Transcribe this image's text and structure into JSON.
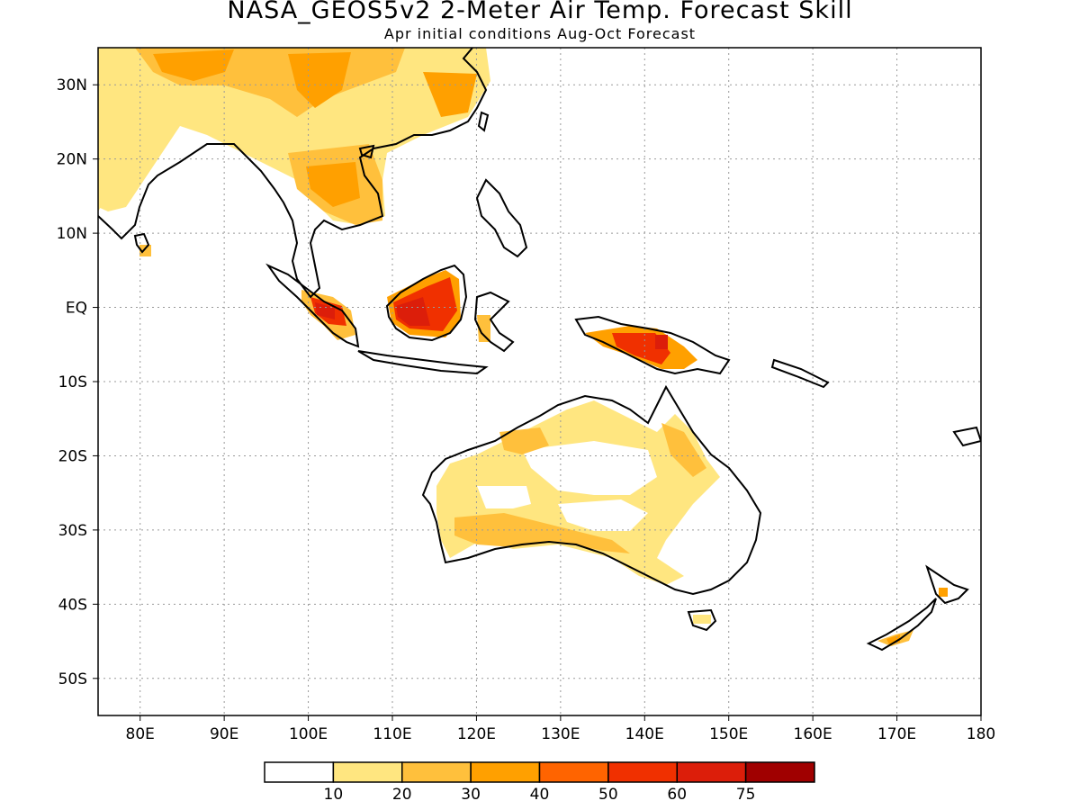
{
  "header": {
    "title": "NASA_GEOS5v2 2-Meter Air Temp. Forecast Skill",
    "subtitle": "Apr initial conditions  Aug-Oct Forecast"
  },
  "map": {
    "lon_range": [
      75,
      180
    ],
    "lat_range": [
      -55,
      35
    ],
    "lon_ticks": [
      {
        "value": 80,
        "label": "80E"
      },
      {
        "value": 90,
        "label": "90E"
      },
      {
        "value": 100,
        "label": "100E"
      },
      {
        "value": 110,
        "label": "110E"
      },
      {
        "value": 120,
        "label": "120E"
      },
      {
        "value": 130,
        "label": "130E"
      },
      {
        "value": 140,
        "label": "140E"
      },
      {
        "value": 150,
        "label": "150E"
      },
      {
        "value": 160,
        "label": "160E"
      },
      {
        "value": 170,
        "label": "170E"
      },
      {
        "value": 180,
        "label": "180"
      }
    ],
    "lat_ticks": [
      {
        "value": 30,
        "label": "30N"
      },
      {
        "value": 20,
        "label": "20N"
      },
      {
        "value": 10,
        "label": "10N"
      },
      {
        "value": 0,
        "label": "EQ"
      },
      {
        "value": -10,
        "label": "10S"
      },
      {
        "value": -20,
        "label": "20S"
      },
      {
        "value": -30,
        "label": "30S"
      },
      {
        "value": -40,
        "label": "40S"
      },
      {
        "value": -50,
        "label": "50S"
      }
    ],
    "grid": "dotted"
  },
  "colorbar": {
    "colors": [
      "#ffffff",
      "#ffe680",
      "#ffc03c",
      "#ffa000",
      "#ff6400",
      "#f03000",
      "#dc1e0a",
      "#a00000"
    ],
    "labels": [
      "10",
      "20",
      "30",
      "40",
      "50",
      "60",
      "75"
    ]
  },
  "colors": {
    "coast": "#000000"
  }
}
